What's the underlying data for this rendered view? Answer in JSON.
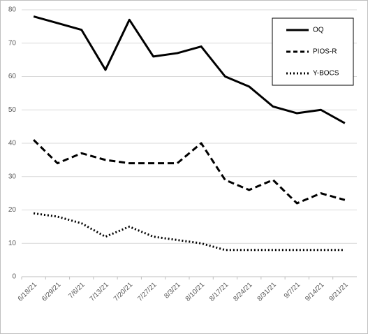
{
  "chart_data": {
    "type": "line",
    "categories": [
      "6/18/21",
      "6/29/21",
      "7/6/21",
      "7/13/21",
      "7/20/21",
      "7/27/21",
      "8/3/21",
      "8/10/21",
      "8/17/21",
      "8/24/21",
      "8/31/21",
      "9/7/21",
      "9/14/21",
      "9/21/21"
    ],
    "series": [
      {
        "name": "OQ",
        "color": "#000000",
        "style": "solid",
        "values": [
          78,
          76,
          74,
          62,
          77,
          66,
          67,
          69,
          60,
          57,
          51,
          49,
          50,
          46
        ]
      },
      {
        "name": "PIOS-R",
        "color": "#000000",
        "style": "dashed",
        "values": [
          41,
          34,
          37,
          35,
          34,
          34,
          34,
          40,
          29,
          26,
          29,
          22,
          25,
          23
        ]
      },
      {
        "name": "Y-BOCS",
        "color": "#000000",
        "style": "dotted",
        "values": [
          19,
          18,
          16,
          12,
          15,
          12,
          11,
          10,
          8,
          8,
          8,
          8,
          8,
          8
        ]
      }
    ],
    "ylim": [
      0,
      80
    ],
    "yticks": [
      0,
      10,
      20,
      30,
      40,
      50,
      60,
      70,
      80
    ],
    "grid": true,
    "legend": "top-right"
  }
}
